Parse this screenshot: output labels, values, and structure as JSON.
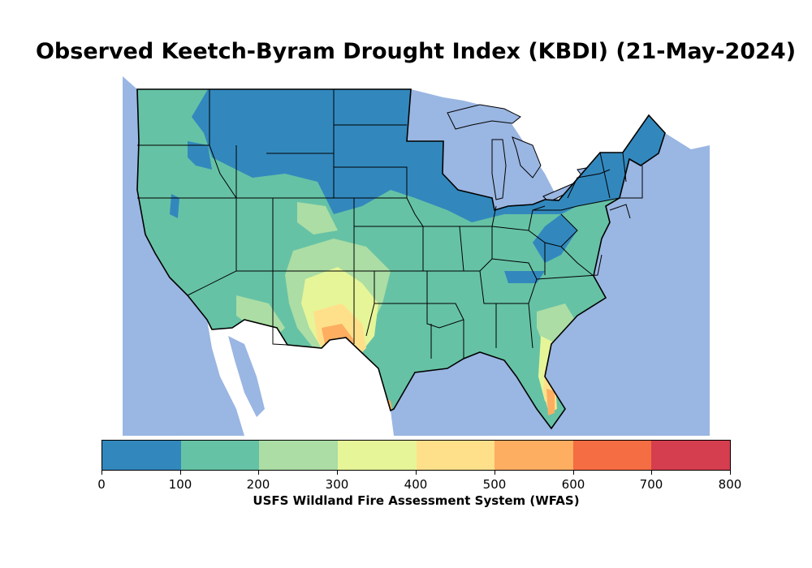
{
  "title": "Observed Keetch-Byram Drought Index (KBDI) (21-May-2024)",
  "colorbar": {
    "label": "USFS Wildland Fire Assessment System (WFAS)",
    "ticks": [
      "0",
      "100",
      "200",
      "300",
      "400",
      "500",
      "600",
      "700",
      "800"
    ],
    "bins": [
      {
        "range": "0-100",
        "color": "#3288bd"
      },
      {
        "range": "100-200",
        "color": "#66c2a5"
      },
      {
        "range": "200-300",
        "color": "#abdda4"
      },
      {
        "range": "300-400",
        "color": "#e6f598"
      },
      {
        "range": "400-500",
        "color": "#fee08b"
      },
      {
        "range": "500-600",
        "color": "#fdae61"
      },
      {
        "range": "600-700",
        "color": "#f46d43"
      },
      {
        "range": "700-800",
        "color": "#d53e4f"
      }
    ]
  },
  "colors": {
    "water": "#9ab6e2",
    "land_outside": "#ffffff",
    "border": "#000000"
  }
}
